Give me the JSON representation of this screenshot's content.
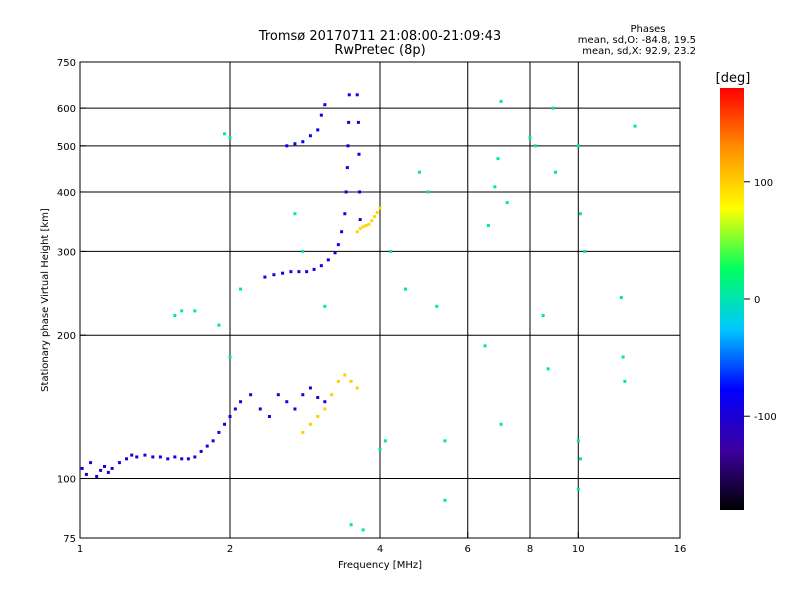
{
  "chart_data": {
    "type": "scatter",
    "title": "Tromsø 20170711 21:08:00-21:09:43",
    "subtitle": "RwPretec (8p)",
    "xlabel": "Frequency [MHz]",
    "ylabel": "Stationary phase Virtual Height [km]",
    "x_scale": "log",
    "y_scale": "log",
    "xlim": [
      1,
      16
    ],
    "ylim": [
      75,
      750
    ],
    "x_ticks": [
      1,
      2,
      4,
      6,
      8,
      10,
      16
    ],
    "x_tick_labels": [
      "1",
      "2",
      "4",
      "6",
      "8",
      "10",
      "16"
    ],
    "x_gridlines": [
      1,
      2,
      4,
      6,
      8,
      10,
      16
    ],
    "y_ticks": [
      75,
      100,
      200,
      300,
      400,
      500,
      600,
      750
    ],
    "y_tick_labels": [
      "75",
      "100",
      "200",
      "300",
      "400",
      "500",
      "600",
      "750"
    ],
    "y_gridlines": [
      100,
      200,
      300,
      400,
      500,
      600
    ],
    "grid": true,
    "stats": {
      "heading": "Phases",
      "line1": "mean, sd,O: -84.8, 19.5",
      "line2": "mean, sd,X:  92.9, 23.2"
    },
    "colorbar": {
      "label": "[deg]",
      "range": [
        -180,
        180
      ],
      "ticks": [
        100,
        0,
        -100
      ],
      "tick_labels": [
        "100",
        "0",
        "-100"
      ],
      "colormap": [
        "#000000",
        "#3c00a0",
        "#0000ff",
        "#00c8ff",
        "#00ff60",
        "#ffff00",
        "#ff9000",
        "#ff0000"
      ]
    },
    "series": [
      {
        "role": "o-mode low (E/F1 region)",
        "phase": -100,
        "points": [
          [
            1.01,
            105
          ],
          [
            1.03,
            102
          ],
          [
            1.05,
            108
          ],
          [
            1.08,
            101
          ],
          [
            1.1,
            104
          ],
          [
            1.12,
            106
          ],
          [
            1.14,
            103
          ],
          [
            1.16,
            105
          ],
          [
            1.2,
            108
          ],
          [
            1.24,
            110
          ],
          [
            1.27,
            112
          ],
          [
            1.3,
            111
          ],
          [
            1.35,
            112
          ],
          [
            1.4,
            111
          ],
          [
            1.45,
            111
          ],
          [
            1.5,
            110
          ],
          [
            1.55,
            111
          ],
          [
            1.6,
            110
          ],
          [
            1.65,
            110
          ],
          [
            1.7,
            111
          ],
          [
            1.75,
            114
          ],
          [
            1.8,
            117
          ],
          [
            1.85,
            120
          ],
          [
            1.9,
            125
          ],
          [
            1.95,
            130
          ],
          [
            2.0,
            135
          ],
          [
            2.05,
            140
          ],
          [
            2.1,
            145
          ],
          [
            2.2,
            150
          ],
          [
            2.3,
            140
          ],
          [
            2.4,
            135
          ],
          [
            2.5,
            150
          ],
          [
            2.6,
            145
          ],
          [
            2.7,
            140
          ],
          [
            2.8,
            150
          ],
          [
            2.9,
            155
          ],
          [
            3.0,
            148
          ],
          [
            3.1,
            145
          ]
        ]
      },
      {
        "role": "o-mode F-layer trace",
        "phase": -90,
        "points": [
          [
            2.35,
            265
          ],
          [
            2.45,
            268
          ],
          [
            2.55,
            270
          ],
          [
            2.65,
            272
          ],
          [
            2.75,
            272
          ],
          [
            2.85,
            272
          ],
          [
            2.95,
            275
          ],
          [
            3.05,
            280
          ],
          [
            3.15,
            288
          ],
          [
            3.25,
            298
          ],
          [
            3.3,
            310
          ],
          [
            3.35,
            330
          ],
          [
            3.4,
            360
          ],
          [
            3.42,
            400
          ],
          [
            3.44,
            450
          ],
          [
            3.45,
            500
          ],
          [
            3.46,
            560
          ],
          [
            3.47,
            640
          ],
          [
            3.6,
            640
          ],
          [
            3.62,
            560
          ],
          [
            3.63,
            480
          ],
          [
            3.64,
            400
          ],
          [
            3.65,
            350
          ]
        ]
      },
      {
        "role": "x-mode F-layer trace",
        "phase": 95,
        "points": [
          [
            3.6,
            330
          ],
          [
            3.65,
            335
          ],
          [
            3.7,
            338
          ],
          [
            3.75,
            340
          ],
          [
            3.8,
            342
          ],
          [
            3.85,
            348
          ],
          [
            3.9,
            355
          ],
          [
            3.95,
            362
          ],
          [
            4.0,
            370
          ]
        ]
      },
      {
        "role": "x-mode low",
        "phase": 100,
        "points": [
          [
            2.8,
            125
          ],
          [
            2.9,
            130
          ],
          [
            3.0,
            135
          ],
          [
            3.1,
            140
          ],
          [
            3.2,
            150
          ],
          [
            3.3,
            160
          ],
          [
            3.4,
            165
          ],
          [
            3.5,
            160
          ],
          [
            3.6,
            155
          ]
        ]
      },
      {
        "role": "upper o-mode spread",
        "phase": -80,
        "points": [
          [
            2.6,
            500
          ],
          [
            2.7,
            505
          ],
          [
            2.8,
            510
          ],
          [
            2.9,
            525
          ],
          [
            3.0,
            540
          ],
          [
            3.05,
            580
          ],
          [
            3.1,
            610
          ]
        ]
      },
      {
        "role": "scattered echoes",
        "phase": 0,
        "points": [
          [
            1.55,
            220
          ],
          [
            1.6,
            225
          ],
          [
            1.7,
            225
          ],
          [
            1.9,
            210
          ],
          [
            2.0,
            180
          ],
          [
            2.1,
            250
          ],
          [
            1.95,
            530
          ],
          [
            2.0,
            520
          ],
          [
            2.7,
            360
          ],
          [
            2.8,
            300
          ],
          [
            3.1,
            230
          ],
          [
            4.2,
            300
          ],
          [
            4.5,
            250
          ],
          [
            4.8,
            440
          ],
          [
            5.0,
            400
          ],
          [
            5.2,
            230
          ],
          [
            5.4,
            120
          ],
          [
            5.4,
            90
          ],
          [
            6.5,
            190
          ],
          [
            6.6,
            340
          ],
          [
            6.8,
            410
          ],
          [
            6.9,
            470
          ],
          [
            7.0,
            620
          ],
          [
            7.2,
            380
          ],
          [
            7.0,
            130
          ],
          [
            8.0,
            520
          ],
          [
            8.2,
            500
          ],
          [
            8.5,
            220
          ],
          [
            8.7,
            170
          ],
          [
            8.9,
            600
          ],
          [
            9.0,
            440
          ],
          [
            10.0,
            500
          ],
          [
            10.1,
            360
          ],
          [
            10.3,
            300
          ],
          [
            12.2,
            240
          ],
          [
            12.3,
            180
          ],
          [
            12.4,
            160
          ],
          [
            13.0,
            550
          ],
          [
            10.0,
            120
          ],
          [
            10.1,
            110
          ],
          [
            10.0,
            95
          ],
          [
            3.5,
            80
          ],
          [
            3.7,
            78
          ],
          [
            4.0,
            115
          ],
          [
            4.1,
            120
          ]
        ]
      }
    ]
  }
}
